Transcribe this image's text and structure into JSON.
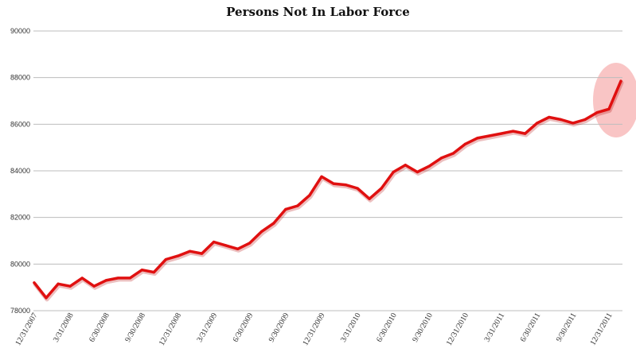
{
  "chart_data": {
    "type": "line",
    "title": "Persons Not In Labor Force",
    "xlabel": "",
    "ylabel": "",
    "ylim": [
      78000,
      90000
    ],
    "yticks": [
      78000,
      80000,
      82000,
      84000,
      86000,
      88000,
      90000
    ],
    "ytick_labels": [
      "78000",
      "80000",
      "82000",
      "84000",
      "86000",
      "88000",
      "90000"
    ],
    "grid": true,
    "line_color": "#e01010",
    "highlight_color": "#f7b2b2",
    "x_tick_labels": [
      {
        "index": 0,
        "label": "12/31/2007"
      },
      {
        "index": 3,
        "label": "3/31/2008"
      },
      {
        "index": 6,
        "label": "6/30/2008"
      },
      {
        "index": 9,
        "label": "9/30/2008"
      },
      {
        "index": 12,
        "label": "12/31/2008"
      },
      {
        "index": 15,
        "label": "3/31/2009"
      },
      {
        "index": 18,
        "label": "6/30/2009"
      },
      {
        "index": 21,
        "label": "9/30/2009"
      },
      {
        "index": 24,
        "label": "12/31/2009"
      },
      {
        "index": 27,
        "label": "3/31/2010"
      },
      {
        "index": 30,
        "label": "6/30/2010"
      },
      {
        "index": 33,
        "label": "9/30/2010"
      },
      {
        "index": 36,
        "label": "12/31/2010"
      },
      {
        "index": 39,
        "label": "3/31/2011"
      },
      {
        "index": 42,
        "label": "6/30/2011"
      },
      {
        "index": 45,
        "label": "9/30/2011"
      },
      {
        "index": 48,
        "label": "12/31/2011"
      }
    ],
    "series": [
      {
        "values": [
          79200,
          78550,
          79150,
          79050,
          79400,
          79050,
          79300,
          79400,
          79400,
          79750,
          79650,
          80200,
          80350,
          80550,
          80450,
          80950,
          80800,
          80650,
          80900,
          81400,
          81750,
          82350,
          82500,
          82950,
          83750,
          83450,
          83400,
          83250,
          82800,
          83250,
          83950,
          84250,
          83950,
          84200,
          84550,
          84750,
          85150,
          85400,
          85500,
          85600,
          85700,
          85600,
          86050,
          86300,
          86200,
          86050,
          86200,
          86500,
          86650,
          87850
        ]
      }
    ]
  }
}
